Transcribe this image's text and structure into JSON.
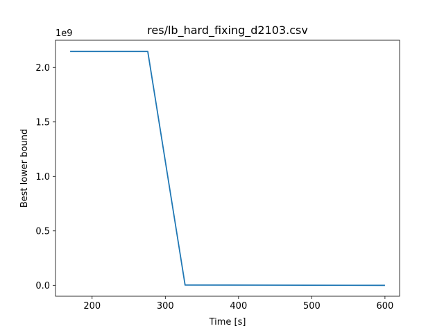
{
  "chart_data": {
    "type": "line",
    "title": "res/lb_hard_fixing_d2103.csv",
    "xlabel": "Time [s]",
    "ylabel": "Best lower bound",
    "y_scale_label": "1e9",
    "xlim": [
      150,
      620
    ],
    "ylim": [
      -0.1,
      2.25
    ],
    "x_ticks": [
      200,
      300,
      400,
      500,
      600
    ],
    "x_tick_labels": [
      "200",
      "300",
      "400",
      "500",
      "600"
    ],
    "y_ticks": [
      0.0,
      0.5,
      1.0,
      1.5,
      2.0
    ],
    "y_tick_labels": [
      "0.0",
      "0.5",
      "1.0",
      "1.5",
      "2.0"
    ],
    "grid": false,
    "series": [
      {
        "color": "#1f77b4",
        "x": [
          170,
          276,
          327,
          600
        ],
        "y": [
          2.147,
          2.147,
          0.003,
          0.0
        ]
      }
    ]
  }
}
